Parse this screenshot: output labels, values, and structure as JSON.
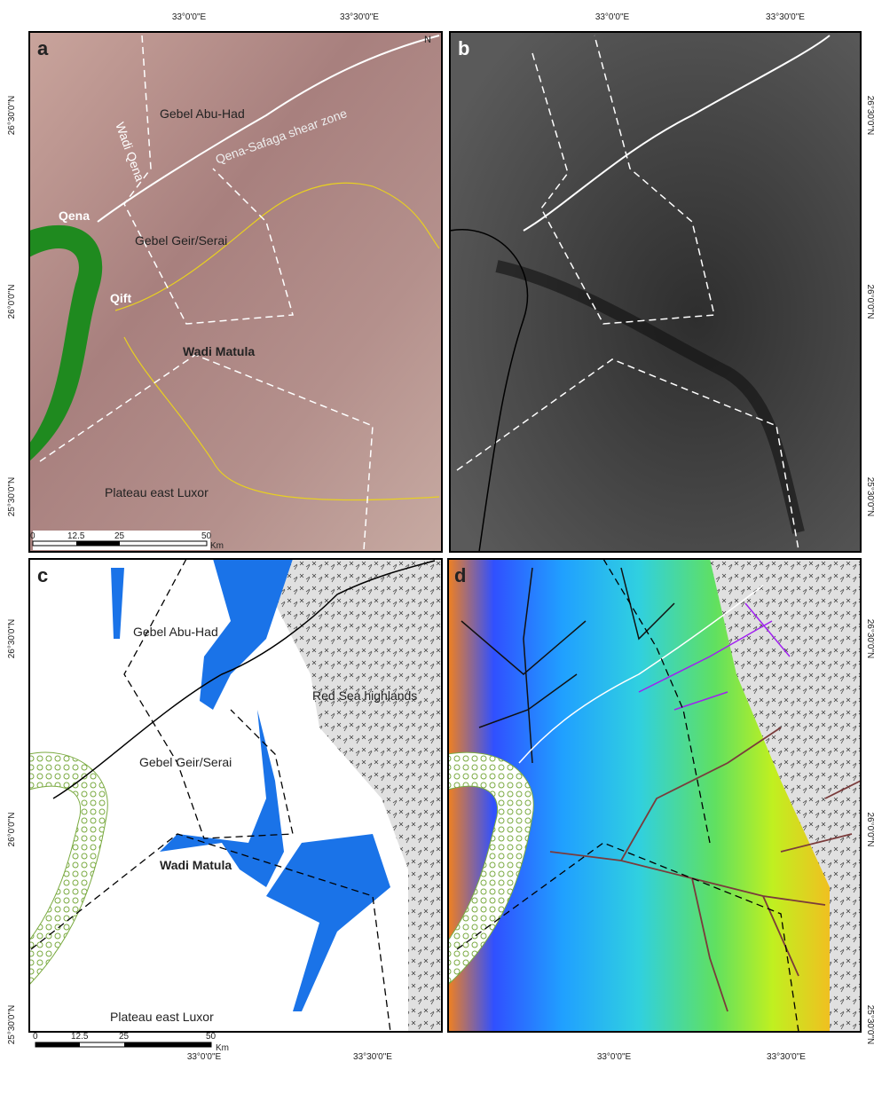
{
  "panels": [
    {
      "letter": "a",
      "top_labels": [
        "33°0'0\"E",
        "33°30'0\"E"
      ],
      "side_labels": [
        "26°30'0\"N",
        "26°0'0\"N",
        "25°30'0\"N"
      ],
      "north": "N",
      "places": [
        "Wadi Qena",
        "Gebel Abu-Had",
        "Qena-Safaga shear zone",
        "Qena",
        "Gebel Geir/Serai",
        "Qift",
        "Wadi Matula",
        "Plateau east Luxor"
      ],
      "scale": {
        "ticks": [
          "0",
          "12.5",
          "25",
          "50"
        ],
        "unit": "Km"
      }
    },
    {
      "letter": "b",
      "top_labels": [
        "33°0'0\"E",
        "33°30'0\"E"
      ],
      "side_labels": [
        "26°30'0\"N",
        "26°0'0\"N",
        "25°30'0\"N"
      ]
    },
    {
      "letter": "c",
      "bottom_labels": [
        "33°0'0\"E",
        "33°30'0\"E"
      ],
      "side_labels": [
        "26°30'0\"N",
        "26°0'0\"N",
        "25°30'0\"N"
      ],
      "places": [
        "Gebel Abu-Had",
        "Red Sea highlands",
        "Gebel Geir/Serai",
        "Wadi Matula",
        "Plateau east Luxor"
      ],
      "scale": {
        "ticks": [
          "0",
          "12.5",
          "25",
          "50"
        ],
        "unit": "Km"
      }
    },
    {
      "letter": "d",
      "bottom_labels": [
        "33°0'0\"E",
        "33°30'0\"E"
      ],
      "side_labels": [
        "26°30'0\"N",
        "26°0'0\"N",
        "25°30'0\"N"
      ]
    }
  ]
}
